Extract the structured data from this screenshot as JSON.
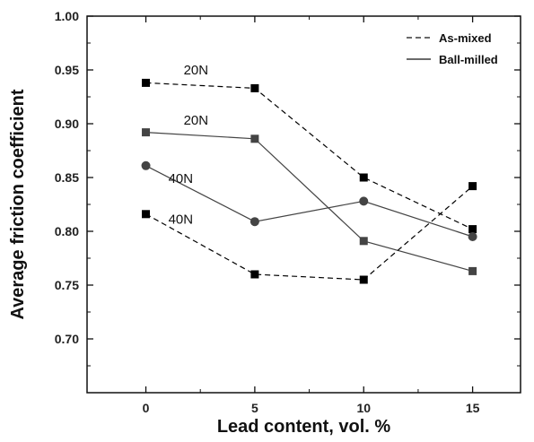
{
  "chart_data": {
    "type": "line",
    "title": "",
    "xlabel": "Lead content, vol. %",
    "ylabel": "Average friction coefficient",
    "xlim": [
      -2.7,
      17.2
    ],
    "ylim": [
      0.65,
      1.0
    ],
    "x_ticks": [
      0,
      5,
      10,
      15
    ],
    "x_tick_labels": [
      "0",
      "5",
      "10",
      "15"
    ],
    "y_ticks": [
      0.7,
      0.75,
      0.8,
      0.85,
      0.9,
      0.95,
      1.0
    ],
    "y_tick_labels": [
      "0.70",
      "0.75",
      "0.80",
      "0.85",
      "0.90",
      "0.95",
      "1.00"
    ],
    "grid": false,
    "legend": {
      "placement": "top-right",
      "entries": [
        {
          "label": "As-mixed",
          "style": "dashed"
        },
        {
          "label": "Ball-milled",
          "style": "solid"
        }
      ]
    },
    "series": [
      {
        "group": "As-mixed",
        "load": "20N",
        "style": "dashed",
        "marker": "square",
        "color": "#000000",
        "x": [
          0,
          5,
          10,
          15
        ],
        "y": [
          0.938,
          0.933,
          0.85,
          0.802
        ]
      },
      {
        "group": "Ball-milled",
        "load": "20N",
        "style": "solid",
        "marker": "square",
        "color": "#444444",
        "x": [
          0,
          5,
          10,
          15
        ],
        "y": [
          0.892,
          0.886,
          0.791,
          0.763
        ]
      },
      {
        "group": "Ball-milled",
        "load": "40N",
        "style": "solid",
        "marker": "circle",
        "color": "#444444",
        "x": [
          0,
          5,
          10,
          15
        ],
        "y": [
          0.861,
          0.809,
          0.828,
          0.795
        ]
      },
      {
        "group": "As-mixed",
        "load": "40N",
        "style": "dashed",
        "marker": "square",
        "color": "#000000",
        "x": [
          0,
          5,
          10,
          15
        ],
        "y": [
          0.816,
          0.76,
          0.755,
          0.842
        ]
      }
    ],
    "annotations": [
      {
        "text": "20N",
        "x": 2.3,
        "y": 0.946
      },
      {
        "text": "20N",
        "x": 2.3,
        "y": 0.899
      },
      {
        "text": "40N",
        "x": 1.6,
        "y": 0.845
      },
      {
        "text": "40N",
        "x": 1.6,
        "y": 0.807
      }
    ]
  }
}
